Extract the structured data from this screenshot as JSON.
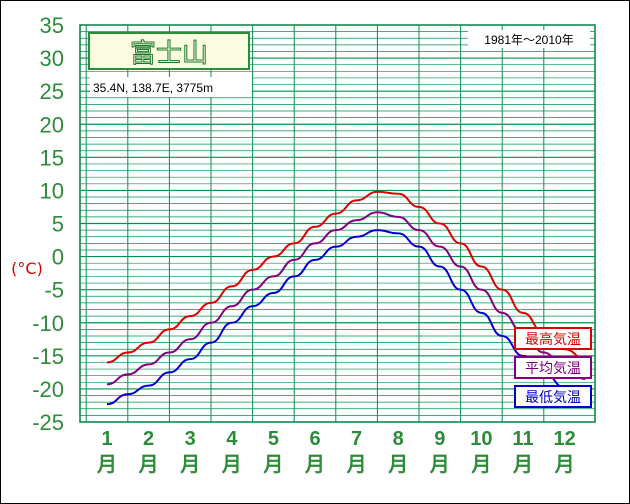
{
  "chart_data": {
    "type": "line",
    "title": "富士山",
    "location": "35.4N,  138.7E,  3775m",
    "period": "1981年〜2010年",
    "ylabel": "(°C)",
    "ylim": [
      -25,
      35
    ],
    "yticks": [
      35,
      30,
      25,
      20,
      15,
      10,
      5,
      0,
      -5,
      -10,
      -15,
      -20,
      -25
    ],
    "grid": true,
    "categories": [
      "1月",
      "2月",
      "3月",
      "4月",
      "5月",
      "6月",
      "7月",
      "8月",
      "9月",
      "10月",
      "11月",
      "12月"
    ],
    "month_numbers": [
      "1",
      "2",
      "3",
      "4",
      "5",
      "6",
      "7",
      "8",
      "9",
      "10",
      "11",
      "12"
    ],
    "month_suffix": "月",
    "x": [
      1,
      1.5,
      2,
      2.5,
      3,
      3.5,
      4,
      4.5,
      5,
      5.5,
      6,
      6.5,
      7,
      7.5,
      8,
      8.5,
      9,
      9.5,
      10,
      10.5,
      11,
      11.5,
      12,
      12.5
    ],
    "series": [
      {
        "name": "最高気温",
        "color": "#dd0000",
        "values": [
          -16,
          -14.5,
          -13,
          -11,
          -9,
          -7,
          -4.5,
          -2,
          0,
          2,
          4.5,
          6.5,
          8.5,
          9.8,
          9.5,
          7.5,
          5,
          2,
          -1.5,
          -5,
          -8.5,
          -11.5,
          -14,
          -15.5
        ]
      },
      {
        "name": "平均気温",
        "color": "#800080",
        "values": [
          -19.3,
          -17.8,
          -16.3,
          -14.5,
          -12.5,
          -10,
          -7.5,
          -5,
          -3,
          -0.5,
          2,
          4,
          5.5,
          6.7,
          6,
          4,
          1.5,
          -1.5,
          -5,
          -8.5,
          -11.5,
          -14.5,
          -17,
          -18.5
        ]
      },
      {
        "name": "最低気温",
        "color": "#0000cc",
        "values": [
          -22.3,
          -20.8,
          -19.5,
          -17.5,
          -15.5,
          -13,
          -10,
          -7.5,
          -5.5,
          -3,
          -0.5,
          1.5,
          3,
          4,
          3.5,
          1.5,
          -1.5,
          -5,
          -8.5,
          -12,
          -15,
          -17.5,
          -19.8,
          -21
        ]
      }
    ]
  }
}
